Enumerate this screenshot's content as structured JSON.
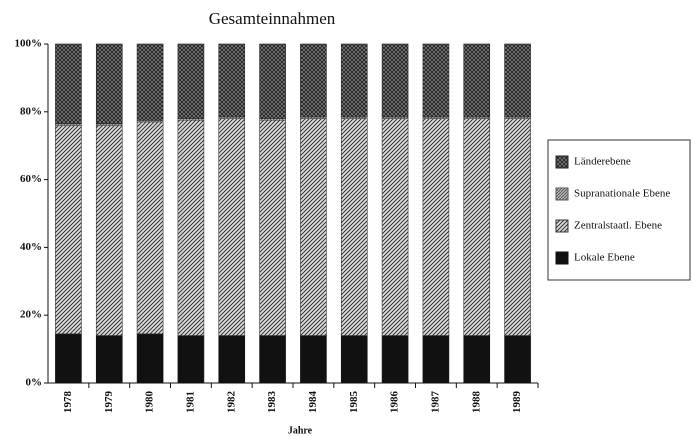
{
  "chart_data": {
    "type": "stacked_bar",
    "title": "Gesamteinnahmen",
    "x_label": "Jahre",
    "categories": [
      "1978",
      "1979",
      "1980",
      "1981",
      "1982",
      "1983",
      "1984",
      "1985",
      "1986",
      "1987",
      "1988",
      "1989"
    ],
    "series": [
      {
        "name": "Lokale Ebene",
        "color": "#111111",
        "values": [
          14.5,
          14,
          14.5,
          14,
          14,
          14,
          14,
          14,
          14,
          14,
          14,
          14
        ]
      },
      {
        "name": "Zentralstaatl. Ebene",
        "color": "#333333",
        "values": [
          61.5,
          62,
          62.5,
          63.5,
          64,
          63.5,
          64,
          64,
          64,
          64,
          64,
          64
        ]
      },
      {
        "name": "Supranationale Ebene",
        "color": "#555555",
        "values": [
          0.5,
          0.5,
          0.5,
          0.5,
          0.5,
          0.5,
          0.5,
          0.5,
          0.5,
          0.5,
          0.5,
          0.5
        ]
      },
      {
        "name": "Länderebene",
        "color": "#222222",
        "values": [
          23.5,
          23.5,
          22.5,
          22,
          21.5,
          22,
          21.5,
          21.5,
          21.5,
          21.5,
          21.5,
          21.5
        ]
      }
    ],
    "ylim": [
      0,
      100
    ],
    "yticks": [
      {
        "value": 0,
        "label": "0%"
      },
      {
        "value": 20,
        "label": "20%"
      },
      {
        "value": 40,
        "label": "40%"
      },
      {
        "value": 60,
        "label": "60%"
      },
      {
        "value": 80,
        "label": "80%"
      },
      {
        "value": 100,
        "label": "100%"
      }
    ],
    "legend": "right"
  }
}
